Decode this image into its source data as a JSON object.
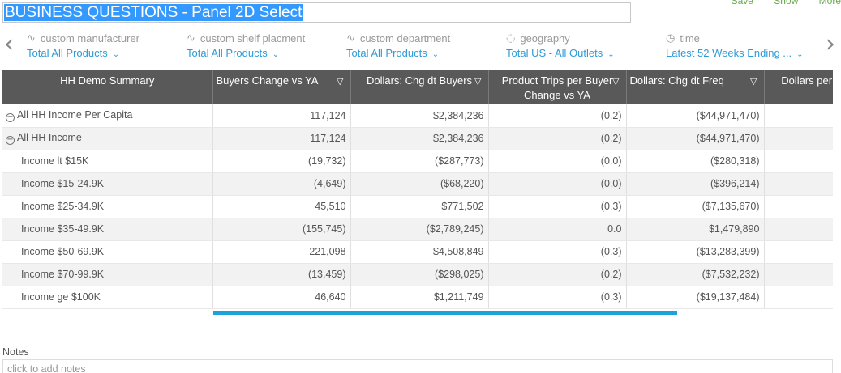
{
  "title": "BUSINESS QUESTIONS - Panel 2D Select",
  "top_actions": [
    "Save",
    "Show",
    "More"
  ],
  "filters": [
    {
      "icon": "pulse-icon",
      "label": "custom manufacturer",
      "value": "Total All Products"
    },
    {
      "icon": "pulse-icon",
      "label": "custom shelf placment",
      "value": "Total All Products"
    },
    {
      "icon": "pulse-icon",
      "label": "custom department",
      "value": "Total All Products"
    },
    {
      "icon": "map-pin-icon",
      "label": "geography",
      "value": "Total US - All Outlets"
    },
    {
      "icon": "clock-icon",
      "label": "time",
      "value": "Latest 52 Weeks Ending ..."
    }
  ],
  "table": {
    "columns": [
      "HH Demo Summary",
      "Buyers Change vs YA",
      "Dollars: Chg dt Buyers",
      "Product Trips per Buyer Change vs YA",
      "Dollars: Chg dt Freq",
      "Dollars per Change vs"
    ],
    "rows": [
      {
        "label": "All HH Income Per Capita",
        "values": [
          "117,124",
          "$2,384,236",
          "(0.2)",
          "($44,971,470)",
          ""
        ]
      },
      {
        "label": "All HH Income",
        "values": [
          "117,124",
          "$2,384,236",
          "(0.2)",
          "($44,971,470)",
          ""
        ]
      },
      {
        "label": "Income lt $15K",
        "values": [
          "(19,732)",
          "($287,773)",
          "(0.0)",
          "($280,318)",
          ""
        ]
      },
      {
        "label": "Income $15-24.9K",
        "values": [
          "(4,649)",
          "($68,220)",
          "(0.0)",
          "($396,214)",
          ""
        ]
      },
      {
        "label": "Income $25-34.9K",
        "values": [
          "45,510",
          "$771,502",
          "(0.3)",
          "($7,135,670)",
          ""
        ]
      },
      {
        "label": "Income $35-49.9K",
        "values": [
          "(155,745)",
          "($2,789,245)",
          "0.0",
          "$1,479,890",
          ""
        ]
      },
      {
        "label": "Income $50-69.9K",
        "values": [
          "221,098",
          "$4,508,849",
          "(0.3)",
          "($13,283,399)",
          ""
        ]
      },
      {
        "label": "Income $70-99.9K",
        "values": [
          "(13,459)",
          "($298,025)",
          "(0.2)",
          "($7,532,232)",
          ""
        ]
      },
      {
        "label": "Income ge $100K",
        "values": [
          "46,640",
          "$1,211,749",
          "(0.3)",
          "($19,137,484)",
          ""
        ]
      }
    ]
  },
  "notes": {
    "label": "Notes",
    "placeholder": "click to add notes"
  },
  "colors": {
    "accent": "#2e9bd6",
    "header_bg": "#595959",
    "title_highlight": "#3399ff",
    "scroll_indicator": "#1ba3db"
  }
}
